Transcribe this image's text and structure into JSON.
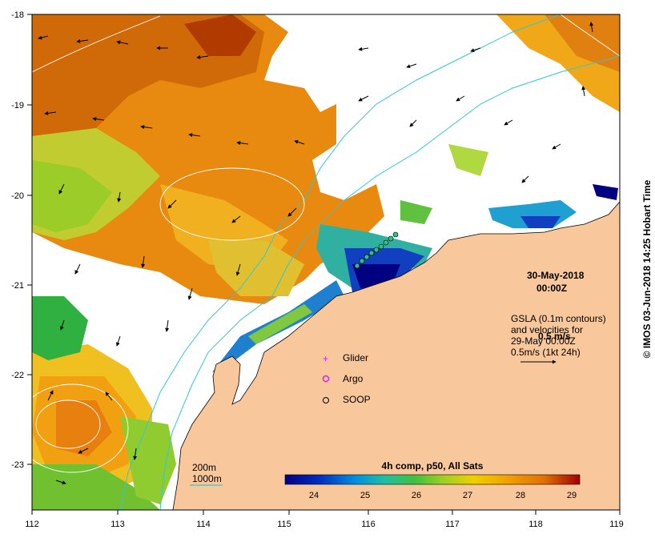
{
  "map": {
    "date": "30-May-2018",
    "time": "00:00Z",
    "note_lines": [
      "GSLA (0.1m contours)",
      "and velocities for",
      "29-May 00:00Z",
      "0.5m/s (1kt 24h)"
    ],
    "scale_overlay_label": "0.5 m/s",
    "x_ticks": [
      "112",
      "113",
      "114",
      "115",
      "116",
      "117",
      "118",
      "119"
    ],
    "y_ticks": [
      "-18",
      "-19",
      "-20",
      "-21",
      "-22",
      "-23"
    ],
    "legend": [
      {
        "label": "Glider",
        "symbol": "plus",
        "color": "#e020e0"
      },
      {
        "label": "Argo",
        "symbol": "ring",
        "color": "#e020e0"
      },
      {
        "label": "SOOP",
        "symbol": "circle",
        "color": "#000000"
      }
    ],
    "bathy_labels": [
      "200m",
      "1000m"
    ],
    "colorbar": {
      "title": "4h comp, p50, All Sats",
      "ticks": [
        "24",
        "25",
        "26",
        "27",
        "28",
        "29"
      ],
      "colors": [
        "#000080",
        "#0030c0",
        "#0090e0",
        "#20c0a0",
        "#40c040",
        "#a0d020",
        "#f0d000",
        "#f0a000",
        "#e07000",
        "#c03000",
        "#a00000"
      ]
    },
    "credit": "© IMOS 03-Jun-2018 14:25 Hobart Time",
    "colors": {
      "land": "#f8c89c",
      "sst_warm": "#e08a10",
      "sst_cool": "#2040c0",
      "contour": "#30c8d8"
    }
  }
}
